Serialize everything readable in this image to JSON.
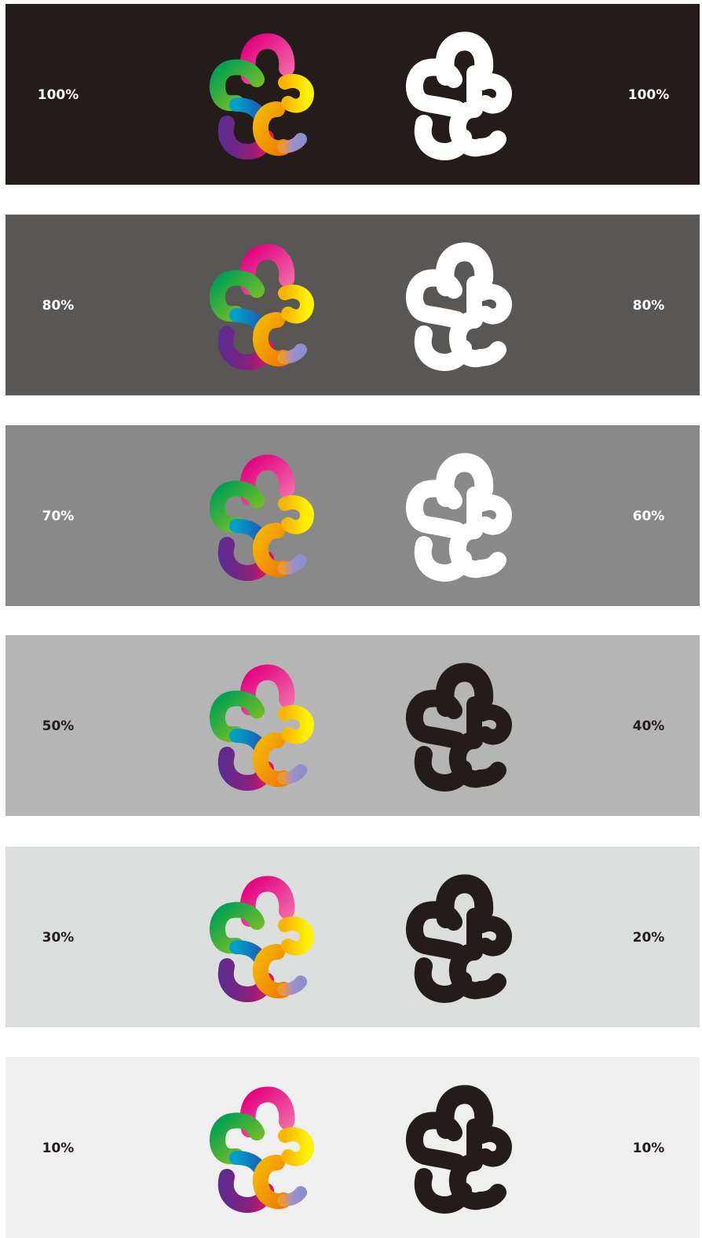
{
  "rows": [
    {
      "bg": "#231c1a",
      "fg": "#ffffff",
      "mono": "#ffffff",
      "left_label": "100%",
      "right_label": "100%"
    },
    {
      "bg": "#595756",
      "fg": "#ffffff",
      "mono": "#ffffff",
      "left_label": "80%",
      "right_label": "80%"
    },
    {
      "bg": "#898989",
      "fg": "#ffffff",
      "mono": "#ffffff",
      "left_label": "70%",
      "right_label": "60%"
    },
    {
      "bg": "#b5b5b5",
      "fg": "#231c1a",
      "mono": "#231c1a",
      "left_label": "50%",
      "right_label": "40%"
    },
    {
      "bg": "#dcdddd",
      "fg": "#231c1a",
      "mono": "#231c1a",
      "left_label": "30%",
      "right_label": "20%"
    },
    {
      "bg": "#efefef",
      "fg": "#231c1a",
      "mono": "#231c1a",
      "left_label": "10%",
      "right_label": "10%"
    }
  ],
  "logo_colors": {
    "magenta": "#e4007f",
    "green": "#00a051",
    "lime": "#8fc31f",
    "blue": "#0093d8",
    "purple": "#5f2b8c",
    "orange": "#f39800",
    "yellow": "#fff100",
    "lavender": "#8b8fcb"
  }
}
